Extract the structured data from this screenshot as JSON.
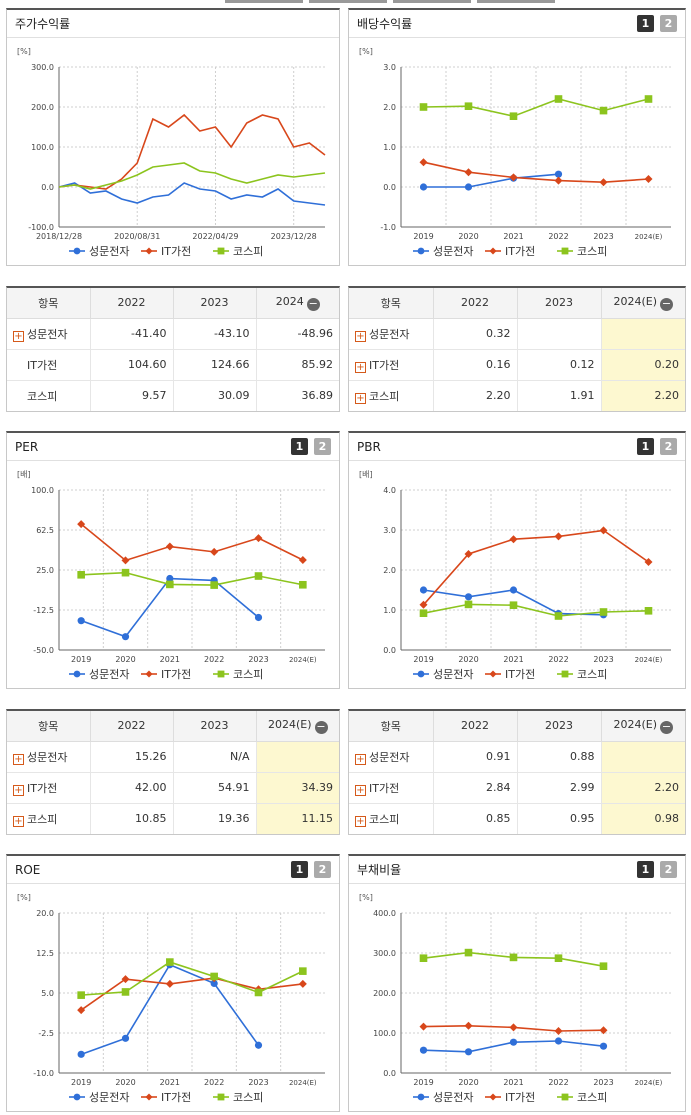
{
  "colors": {
    "samsung": "#2f6fd8",
    "it": "#d8471b",
    "kospi": "#8cc41e"
  },
  "legend": [
    "성문전자",
    "IT가전",
    "코스피"
  ],
  "pager": [
    "1",
    "2"
  ],
  "panels": {
    "price": {
      "title": "주가수익률",
      "unit": "[%]",
      "yticks": [
        "300.0",
        "200.0",
        "100.0",
        "0.0",
        "-100.0"
      ],
      "xticks": [
        "2018/12/28",
        "2020/08/31",
        "2022/04/29",
        "2023/12/28"
      ]
    },
    "dividend": {
      "title": "배당수익률",
      "unit": "[%]"
    },
    "per": {
      "title": "PER",
      "unit": "[배]"
    },
    "pbr": {
      "title": "PBR",
      "unit": "[배]"
    },
    "roe": {
      "title": "ROE",
      "unit": "[%]"
    },
    "debt": {
      "title": "부채비율",
      "unit": "[%]"
    }
  },
  "tables": {
    "price": {
      "headers": [
        "항목",
        "2022",
        "2023",
        "2024"
      ],
      "rows": [
        {
          "name": "성문전자",
          "v": [
            "-41.40",
            "-43.10",
            "-48.96"
          ]
        },
        {
          "name": "IT가전",
          "v": [
            "104.60",
            "124.66",
            "85.92"
          ]
        },
        {
          "name": "코스피",
          "v": [
            "9.57",
            "30.09",
            "36.89"
          ]
        }
      ]
    },
    "dividend": {
      "headers": [
        "항목",
        "2022",
        "2023",
        "2024(E)"
      ],
      "rows": [
        {
          "name": "성문전자",
          "v": [
            "0.32",
            "",
            ""
          ]
        },
        {
          "name": "IT가전",
          "v": [
            "0.16",
            "0.12",
            "0.20"
          ]
        },
        {
          "name": "코스피",
          "v": [
            "2.20",
            "1.91",
            "2.20"
          ]
        }
      ]
    },
    "per": {
      "headers": [
        "항목",
        "2022",
        "2023",
        "2024(E)"
      ],
      "rows": [
        {
          "name": "성문전자",
          "v": [
            "15.26",
            "N/A",
            ""
          ]
        },
        {
          "name": "IT가전",
          "v": [
            "42.00",
            "54.91",
            "34.39"
          ]
        },
        {
          "name": "코스피",
          "v": [
            "10.85",
            "19.36",
            "11.15"
          ]
        }
      ]
    },
    "pbr": {
      "headers": [
        "항목",
        "2022",
        "2023",
        "2024(E)"
      ],
      "rows": [
        {
          "name": "성문전자",
          "v": [
            "0.91",
            "0.88",
            ""
          ]
        },
        {
          "name": "IT가전",
          "v": [
            "2.84",
            "2.99",
            "2.20"
          ]
        },
        {
          "name": "코스피",
          "v": [
            "0.85",
            "0.95",
            "0.98"
          ]
        }
      ]
    }
  },
  "chart_data": [
    {
      "id": "price",
      "type": "line",
      "title": "주가수익률",
      "ylabel": "[%]",
      "ylim": [
        -100,
        300
      ],
      "x": [
        "2018/12/28",
        "2019/04",
        "2019/08",
        "2019/12",
        "2020/04",
        "2020/08/31",
        "2020/12",
        "2021/04",
        "2021/08",
        "2021/12",
        "2022/04/29",
        "2022/08",
        "2022/12",
        "2023/04",
        "2023/08",
        "2023/12/28",
        "2024/04",
        "2024/08"
      ],
      "series": [
        {
          "name": "성문전자",
          "values": [
            0,
            10,
            -15,
            -10,
            -30,
            -40,
            -25,
            -20,
            10,
            -5,
            -10,
            -30,
            -20,
            -25,
            -5,
            -35,
            -40,
            -45
          ]
        },
        {
          "name": "IT가전",
          "values": [
            0,
            5,
            0,
            -5,
            20,
            60,
            170,
            150,
            180,
            140,
            150,
            100,
            160,
            180,
            170,
            100,
            110,
            80
          ]
        },
        {
          "name": "코스피",
          "values": [
            0,
            5,
            -5,
            5,
            15,
            30,
            50,
            55,
            60,
            40,
            35,
            20,
            10,
            20,
            30,
            25,
            30,
            35
          ]
        }
      ]
    },
    {
      "id": "dividend",
      "type": "line",
      "title": "배당수익률",
      "ylabel": "[%]",
      "ylim": [
        -1,
        3
      ],
      "categories": [
        "2019",
        "2020",
        "2021",
        "2022",
        "2023",
        "2024(E)"
      ],
      "series": [
        {
          "name": "성문전자",
          "values": [
            0.0,
            0.0,
            0.22,
            0.32,
            null,
            null
          ]
        },
        {
          "name": "IT가전",
          "values": [
            0.62,
            0.37,
            0.24,
            0.16,
            0.12,
            0.2
          ]
        },
        {
          "name": "코스피",
          "values": [
            2.0,
            2.02,
            1.77,
            2.2,
            1.91,
            2.2
          ]
        }
      ]
    },
    {
      "id": "per",
      "type": "line",
      "title": "PER",
      "ylabel": "[배]",
      "ylim": [
        -50,
        100
      ],
      "categories": [
        "2019",
        "2020",
        "2021",
        "2022",
        "2023",
        "2024(E)"
      ],
      "series": [
        {
          "name": "성문전자",
          "values": [
            -22.5,
            -37.5,
            17.0,
            15.26,
            -19.5,
            null
          ]
        },
        {
          "name": "IT가전",
          "values": [
            68.0,
            34.0,
            47.0,
            42.0,
            54.91,
            34.39
          ]
        },
        {
          "name": "코스피",
          "values": [
            20.5,
            22.5,
            11.5,
            10.85,
            19.36,
            11.15
          ]
        }
      ]
    },
    {
      "id": "pbr",
      "type": "line",
      "title": "PBR",
      "ylabel": "[배]",
      "ylim": [
        0,
        4
      ],
      "categories": [
        "2019",
        "2020",
        "2021",
        "2022",
        "2023",
        "2024(E)"
      ],
      "series": [
        {
          "name": "성문전자",
          "values": [
            1.5,
            1.33,
            1.5,
            0.91,
            0.88,
            null
          ]
        },
        {
          "name": "IT가전",
          "values": [
            1.13,
            2.4,
            2.77,
            2.84,
            2.99,
            2.2
          ]
        },
        {
          "name": "코스피",
          "values": [
            0.92,
            1.14,
            1.12,
            0.85,
            0.95,
            0.98
          ]
        }
      ]
    },
    {
      "id": "roe",
      "type": "line",
      "title": "ROE",
      "ylabel": "[%]",
      "ylim": [
        -10,
        20
      ],
      "categories": [
        "2019",
        "2020",
        "2021",
        "2022",
        "2023",
        "2024(E)"
      ],
      "series": [
        {
          "name": "성문전자",
          "values": [
            -6.5,
            -3.5,
            10.3,
            6.8,
            -4.8,
            null
          ]
        },
        {
          "name": "IT가전",
          "values": [
            1.8,
            7.6,
            6.7,
            7.8,
            5.7,
            6.7
          ]
        },
        {
          "name": "코스피",
          "values": [
            4.6,
            5.2,
            10.8,
            8.1,
            5.1,
            9.1
          ]
        }
      ]
    },
    {
      "id": "debt",
      "type": "line",
      "title": "부채비율",
      "ylabel": "[%]",
      "ylim": [
        0,
        400
      ],
      "categories": [
        "2019",
        "2020",
        "2021",
        "2022",
        "2023",
        "2024(E)"
      ],
      "series": [
        {
          "name": "성문전자",
          "values": [
            57,
            53,
            77,
            80,
            67,
            null
          ]
        },
        {
          "name": "IT가전",
          "values": [
            116,
            118,
            114,
            105,
            107,
            null
          ]
        },
        {
          "name": "코스피",
          "values": [
            287,
            301,
            289,
            287,
            267,
            null
          ]
        }
      ]
    }
  ]
}
